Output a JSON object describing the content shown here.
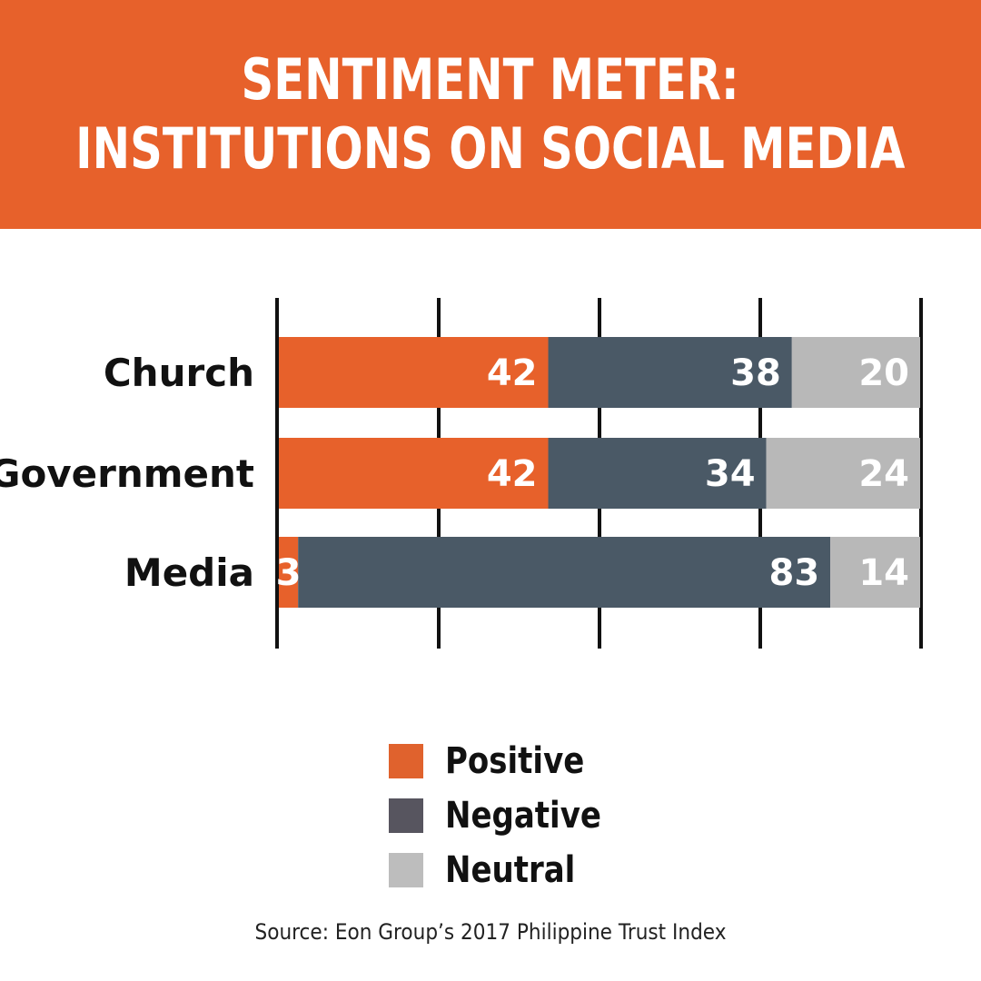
{
  "title": {
    "line1": "SENTIMENT METER:",
    "line2": "INSTITUTIONS ON SOCIAL MEDIA"
  },
  "chart_data": {
    "type": "bar",
    "orientation": "horizontal",
    "stacked": true,
    "categories": [
      "Church",
      "Government",
      "Media"
    ],
    "series": [
      {
        "name": "Positive",
        "values": [
          42,
          42,
          3
        ],
        "color": "#e7612b"
      },
      {
        "name": "Negative",
        "values": [
          38,
          34,
          83
        ],
        "color": "#4a5966"
      },
      {
        "name": "Neutral",
        "values": [
          20,
          24,
          14
        ],
        "color": "#b8b8b8"
      }
    ],
    "xlim": [
      0,
      100
    ],
    "grid": true,
    "legend_position": "bottom"
  },
  "legend": {
    "items": [
      {
        "label": "Positive",
        "color": "#e0622d"
      },
      {
        "label": "Negative",
        "color": "#57555f"
      },
      {
        "label": "Neutral",
        "color": "#bdbdbd"
      }
    ]
  },
  "source": "Source: Eon Group’s 2017 Philippine Trust Index"
}
